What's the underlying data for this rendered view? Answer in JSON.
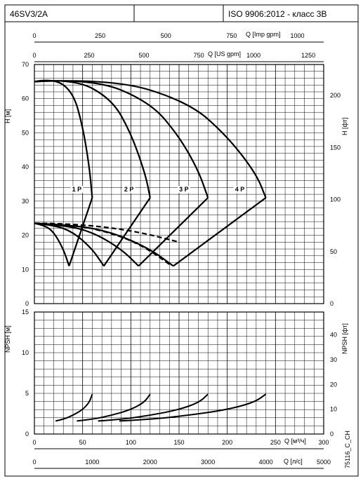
{
  "header": {
    "model": "46SV3/2A",
    "standard": "ISO 9906:2012 - класс 3B"
  },
  "axes": {
    "top_imp_label": "Q [Imp gpm]",
    "top_imp_ticks": [
      "0",
      "250",
      "500",
      "750",
      "1000"
    ],
    "top_us_label": "Q [US gpm]",
    "top_us_ticks": [
      "0",
      "250",
      "500",
      "750",
      "1000",
      "1250"
    ],
    "h_label": "H [м]",
    "h_ticks": [
      "0",
      "10",
      "20",
      "30",
      "40",
      "50",
      "60",
      "70"
    ],
    "h_ft_label": "H [фт]",
    "h_ft_ticks": [
      "0",
      "50",
      "100",
      "150",
      "200"
    ],
    "npsh_label": "NPSH [м]",
    "npsh_ticks": [
      "0",
      "5",
      "10",
      "15"
    ],
    "npsh_ft_label": "NPSH [фт]",
    "npsh_ft_ticks": [
      "0",
      "10",
      "20",
      "30",
      "40"
    ],
    "q_m3h_label": "Q [м³/ч]",
    "q_m3h_ticks": [
      "0",
      "50",
      "100",
      "150",
      "200",
      "250",
      "300"
    ],
    "q_ls_label": "Q [л/с]",
    "q_ls_ticks": [
      "0",
      "1000",
      "2000",
      "3000",
      "4000",
      "5000"
    ]
  },
  "footnote": "75116_C_CH",
  "chart_data": [
    {
      "type": "line",
      "title": "H",
      "xlabel": "Q [м³/ч]",
      "ylabel": "H [м]",
      "xlim": [
        0,
        300
      ],
      "ylim": [
        0,
        70
      ],
      "grid": true,
      "series": [
        {
          "name": "1 P",
          "x": [
            0,
            20,
            40,
            50,
            57,
            60
          ],
          "y": [
            65,
            66,
            62,
            52,
            40,
            31
          ]
        },
        {
          "name": "2 P",
          "x": [
            0,
            40,
            80,
            100,
            115,
            120
          ],
          "y": [
            65,
            66,
            60,
            50,
            38,
            31
          ]
        },
        {
          "name": "3 P",
          "x": [
            0,
            60,
            120,
            150,
            170,
            180
          ],
          "y": [
            65,
            66,
            59,
            49,
            39,
            31
          ]
        },
        {
          "name": "4 P",
          "x": [
            0,
            80,
            160,
            200,
            230,
            240
          ],
          "y": [
            65,
            66,
            59,
            49,
            38,
            31
          ]
        },
        {
          "name": "",
          "x": [
            0,
            10,
            20,
            30,
            36
          ],
          "y": [
            23.5,
            23,
            21,
            16,
            11
          ]
        },
        {
          "name": "",
          "x": [
            36,
            60
          ],
          "y": [
            11,
            31
          ]
        },
        {
          "name": "",
          "x": [
            0,
            20,
            40,
            60,
            72
          ],
          "y": [
            23.5,
            23,
            21,
            16,
            11
          ]
        },
        {
          "name": "",
          "x": [
            72,
            120
          ],
          "y": [
            11,
            31
          ]
        },
        {
          "name": "",
          "x": [
            0,
            30,
            60,
            90,
            108
          ],
          "y": [
            23.5,
            23,
            21,
            16,
            11
          ]
        },
        {
          "name": "",
          "x": [
            108,
            180
          ],
          "y": [
            11,
            31
          ]
        },
        {
          "name": "",
          "x": [
            0,
            40,
            80,
            120,
            144
          ],
          "y": [
            23.5,
            23,
            21,
            16,
            11
          ]
        },
        {
          "name": "",
          "x": [
            144,
            240
          ],
          "y": [
            11,
            31
          ]
        }
      ],
      "dashed_series": [
        {
          "name": "",
          "x": [
            0,
            20,
            40,
            60,
            80,
            100,
            120,
            140
          ],
          "y": [
            23.5,
            23.5,
            23,
            22,
            20.5,
            18.5,
            15.5,
            11.5
          ]
        },
        {
          "name": "",
          "x": [
            0,
            30,
            60,
            90,
            120,
            150
          ],
          "y": [
            23.5,
            23.4,
            22.8,
            21.8,
            20.2,
            18
          ]
        }
      ],
      "annotations": [
        {
          "text": "1 P",
          "x": 44,
          "y": 33
        },
        {
          "text": "2 P",
          "x": 98,
          "y": 33
        },
        {
          "text": "3 P",
          "x": 155,
          "y": 33
        },
        {
          "text": "4 P",
          "x": 213,
          "y": 33
        }
      ]
    },
    {
      "type": "line",
      "title": "NPSH",
      "xlabel": "Q [м³/ч]",
      "ylabel": "NPSH [м]",
      "xlim": [
        0,
        300
      ],
      "ylim": [
        0,
        15
      ],
      "grid": true,
      "series": [
        {
          "name": "1 P",
          "x": [
            22,
            30,
            40,
            50,
            57,
            60
          ],
          "y": [
            1.6,
            1.8,
            2.3,
            3.0,
            3.9,
            4.9
          ]
        },
        {
          "name": "2 P",
          "x": [
            44,
            60,
            80,
            100,
            114,
            120
          ],
          "y": [
            1.6,
            1.8,
            2.3,
            3.0,
            3.9,
            4.9
          ]
        },
        {
          "name": "3 P",
          "x": [
            66,
            90,
            120,
            150,
            171,
            180
          ],
          "y": [
            1.6,
            1.8,
            2.3,
            3.0,
            3.9,
            4.9
          ]
        },
        {
          "name": "4 P",
          "x": [
            88,
            120,
            160,
            200,
            228,
            240
          ],
          "y": [
            1.6,
            1.8,
            2.3,
            3.0,
            3.9,
            4.9
          ]
        }
      ]
    }
  ]
}
